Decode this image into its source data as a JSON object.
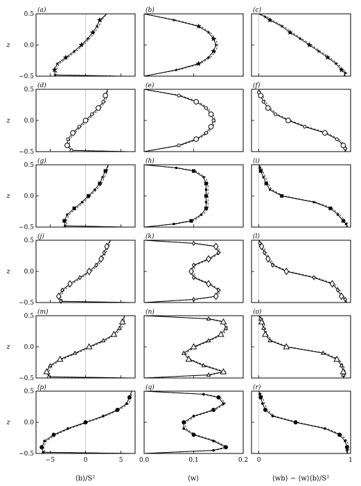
{
  "chart_data": {
    "type": "line",
    "layout": {
      "rows": 6,
      "cols": 3
    },
    "y_label": "z",
    "y_range": [
      -0.5,
      0.5
    ],
    "y_ticks": [
      "−0.5",
      "0.0",
      "0.5"
    ],
    "y_tick_values": [
      -0.5,
      0.0,
      0.5
    ],
    "columns": [
      {
        "x_label": "⟨b⟩/S²",
        "x_range": [
          -7,
          7
        ],
        "x_ticks": [
          "−5",
          "0",
          "5"
        ],
        "x_tick_values": [
          -5,
          0,
          5
        ]
      },
      {
        "x_label": "⟨w⟩",
        "x_range": [
          0,
          0.2
        ],
        "x_ticks": [
          "0.0",
          "0.1",
          "0.2"
        ],
        "x_tick_values": [
          0,
          0.1,
          0.2
        ]
      },
      {
        "x_label": "⟨wb⟩ − ⟨w⟩⟨b⟩/S²",
        "x_range": [
          -0.08,
          1.0
        ],
        "x_ticks": [
          "0",
          "1"
        ],
        "x_tick_values": [
          0,
          1
        ]
      }
    ],
    "panel_labels": [
      "(a)",
      "(b)",
      "(c)",
      "(d)",
      "(e)",
      "(f)",
      "(g)",
      "(h)",
      "(i)",
      "(j)",
      "(k)",
      "(l)",
      "(m)",
      "(n)",
      "(o)",
      "(p)",
      "(q)",
      "(r)"
    ],
    "row_markers": [
      "star",
      "circle",
      "square",
      "diamond",
      "triangle",
      "dot"
    ],
    "rows": [
      {
        "b": {
          "z": [
            -0.5,
            -0.48,
            -0.4,
            -0.3,
            -0.2,
            -0.1,
            0.0,
            0.1,
            0.2,
            0.3,
            0.4,
            0.5
          ],
          "x": [
            5.0,
            -4.3,
            -4.4,
            -4.0,
            -2.8,
            -1.6,
            -0.6,
            0.3,
            1.0,
            1.6,
            2.0,
            3.0
          ]
        },
        "w": {
          "z": [
            -0.5,
            -0.4,
            -0.3,
            -0.2,
            -0.1,
            0.0,
            0.1,
            0.2,
            0.3,
            0.4,
            0.5
          ],
          "x": [
            0.0,
            0.065,
            0.11,
            0.13,
            0.14,
            0.145,
            0.14,
            0.13,
            0.11,
            0.06,
            0.0
          ]
        },
        "f": {
          "z": [
            -0.5,
            -0.45,
            -0.4,
            -0.3,
            -0.2,
            -0.1,
            0.0,
            0.1,
            0.2,
            0.3,
            0.4,
            0.45,
            0.5
          ],
          "x": [
            0.93,
            0.94,
            0.9,
            0.84,
            0.75,
            0.65,
            0.55,
            0.45,
            0.34,
            0.25,
            0.12,
            0.07,
            0.0
          ]
        }
      },
      {
        "b": {
          "z": [
            -0.5,
            -0.48,
            -0.4,
            -0.3,
            -0.2,
            -0.1,
            0.0,
            0.1,
            0.2,
            0.3,
            0.4,
            0.5
          ],
          "x": [
            6.0,
            -2.0,
            -2.6,
            -2.5,
            -1.8,
            -0.9,
            0.0,
            0.9,
            1.8,
            2.5,
            2.8,
            3.1
          ]
        },
        "w": {
          "z": [
            -0.5,
            -0.4,
            -0.3,
            -0.2,
            -0.1,
            0.0,
            0.1,
            0.2,
            0.3,
            0.4,
            0.5
          ],
          "x": [
            0.0,
            0.07,
            0.105,
            0.125,
            0.135,
            0.14,
            0.135,
            0.125,
            0.105,
            0.07,
            0.0
          ]
        },
        "f": {
          "z": [
            -0.5,
            -0.45,
            -0.4,
            -0.3,
            -0.2,
            -0.1,
            0.0,
            0.1,
            0.2,
            0.3,
            0.4,
            0.45,
            0.5
          ],
          "x": [
            0.94,
            0.94,
            0.92,
            0.85,
            0.72,
            0.5,
            0.32,
            0.18,
            0.1,
            0.05,
            0.02,
            0.0,
            0.0
          ]
        }
      },
      {
        "b": {
          "z": [
            -0.5,
            -0.48,
            -0.4,
            -0.3,
            -0.2,
            -0.1,
            0.0,
            0.1,
            0.2,
            0.3,
            0.4,
            0.5
          ],
          "x": [
            5.5,
            -2.9,
            -3.0,
            -2.6,
            -1.6,
            -0.5,
            0.4,
            1.3,
            2.0,
            2.4,
            2.8,
            3.2
          ]
        },
        "w": {
          "z": [
            -0.5,
            -0.45,
            -0.4,
            -0.3,
            -0.2,
            -0.1,
            0.0,
            0.1,
            0.2,
            0.3,
            0.4,
            0.45,
            0.5
          ],
          "x": [
            0.0,
            0.06,
            0.095,
            0.115,
            0.125,
            0.125,
            0.125,
            0.125,
            0.125,
            0.12,
            0.1,
            0.065,
            0.0
          ]
        },
        "f": {
          "z": [
            -0.5,
            -0.45,
            -0.4,
            -0.3,
            -0.2,
            -0.1,
            0.0,
            0.1,
            0.2,
            0.3,
            0.4,
            0.45,
            0.5
          ],
          "x": [
            0.96,
            0.95,
            0.92,
            0.86,
            0.78,
            0.6,
            0.25,
            0.12,
            0.08,
            0.05,
            0.02,
            0.01,
            0.0
          ]
        }
      },
      {
        "b": {
          "z": [
            -0.5,
            -0.48,
            -0.4,
            -0.3,
            -0.2,
            -0.1,
            0.0,
            0.1,
            0.2,
            0.3,
            0.4,
            0.5
          ],
          "x": [
            6.5,
            -3.5,
            -3.8,
            -3.3,
            -2.2,
            -0.8,
            0.5,
            1.5,
            2.2,
            2.6,
            3.0,
            3.5
          ]
        },
        "w": {
          "z": [
            -0.5,
            -0.45,
            -0.4,
            -0.3,
            -0.2,
            -0.1,
            0.0,
            0.1,
            0.2,
            0.3,
            0.4,
            0.45,
            0.5
          ],
          "x": [
            0.0,
            0.1,
            0.145,
            0.15,
            0.13,
            0.1,
            0.095,
            0.1,
            0.13,
            0.15,
            0.145,
            0.1,
            0.0
          ]
        },
        "f": {
          "z": [
            -0.5,
            -0.45,
            -0.4,
            -0.3,
            -0.2,
            -0.1,
            0.0,
            0.1,
            0.2,
            0.3,
            0.4,
            0.45,
            0.5
          ],
          "x": [
            0.95,
            0.94,
            0.9,
            0.86,
            0.8,
            0.6,
            0.3,
            0.15,
            0.1,
            0.06,
            0.03,
            0.01,
            0.0
          ]
        }
      },
      {
        "b": {
          "z": [
            -0.5,
            -0.48,
            -0.4,
            -0.3,
            -0.2,
            -0.1,
            0.0,
            0.1,
            0.2,
            0.3,
            0.4,
            0.5
          ],
          "x": [
            6.5,
            -5.2,
            -5.5,
            -5.0,
            -3.6,
            -1.5,
            0.5,
            2.5,
            4.0,
            4.8,
            5.2,
            5.5
          ]
        },
        "w": {
          "z": [
            -0.5,
            -0.45,
            -0.4,
            -0.3,
            -0.2,
            -0.1,
            0.0,
            0.1,
            0.2,
            0.3,
            0.4,
            0.45,
            0.5
          ],
          "x": [
            0.0,
            0.13,
            0.16,
            0.12,
            0.09,
            0.08,
            0.1,
            0.13,
            0.155,
            0.165,
            0.16,
            0.13,
            0.0
          ]
        },
        "f": {
          "z": [
            -0.5,
            -0.45,
            -0.4,
            -0.3,
            -0.2,
            -0.1,
            0.0,
            0.1,
            0.2,
            0.3,
            0.4,
            0.45,
            0.5
          ],
          "x": [
            0.92,
            0.92,
            0.92,
            0.9,
            0.85,
            0.7,
            0.3,
            0.12,
            0.07,
            0.05,
            0.03,
            0.02,
            0.0
          ]
        }
      },
      {
        "b": {
          "z": [
            -0.5,
            -0.48,
            -0.4,
            -0.3,
            -0.2,
            -0.1,
            0.0,
            0.1,
            0.2,
            0.3,
            0.4,
            0.5
          ],
          "x": [
            6.5,
            -6.0,
            -6.2,
            -5.8,
            -4.5,
            -2.5,
            0.0,
            2.5,
            4.5,
            5.8,
            6.2,
            6.5
          ]
        },
        "w": {
          "z": [
            -0.5,
            -0.45,
            -0.4,
            -0.3,
            -0.2,
            -0.1,
            0.0,
            0.1,
            0.2,
            0.3,
            0.4,
            0.45,
            0.5
          ],
          "x": [
            0.0,
            0.14,
            0.165,
            0.14,
            0.1,
            0.08,
            0.08,
            0.1,
            0.14,
            0.16,
            0.15,
            0.12,
            0.0
          ]
        },
        "f": {
          "z": [
            -0.5,
            -0.45,
            -0.4,
            -0.3,
            -0.2,
            -0.1,
            0.0,
            0.1,
            0.2,
            0.3,
            0.4,
            0.45,
            0.5
          ],
          "x": [
            0.96,
            0.96,
            0.96,
            0.94,
            0.88,
            0.72,
            0.4,
            0.15,
            0.07,
            0.04,
            0.02,
            0.01,
            0.0
          ]
        }
      }
    ]
  }
}
